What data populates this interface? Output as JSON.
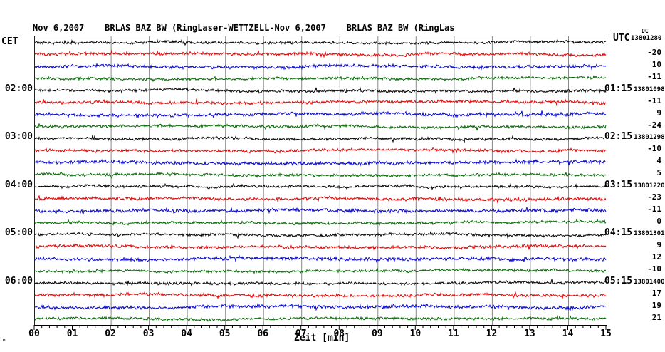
{
  "title": "Nov 6,2007    BRLAS BAZ BW (RingLaser-WETTZELL-Nov 6,2007    BRLAS BAZ BW (RingLas",
  "left_axis_label": "CET",
  "right_axis_label": "UTC",
  "dc_column_label": "DC",
  "xlabel": "Zeit [min]",
  "corner_mark": "ₘ",
  "colors": {
    "black": "#000000",
    "red": "#e00000",
    "blue": "#0000cc",
    "green": "#006600",
    "grid": "#888888",
    "axis": "#000000"
  },
  "x_ticks": [
    "00",
    "01",
    "02",
    "03",
    "04",
    "05",
    "06",
    "07",
    "08",
    "09",
    "10",
    "11",
    "12",
    "13",
    "14",
    "15"
  ],
  "chart_data": {
    "type": "line",
    "subtype": "helicorder-seismogram",
    "title": "Nov 6,2007    BRLAS BAZ BW (RingLaser-WETTZELL-Nov 6,2007    BRLAS BAZ BW (RingLas",
    "xlabel": "Zeit [min]",
    "x_range_minutes": [
      0,
      15
    ],
    "minutes_per_line": 15,
    "grid": true,
    "legend_position": "none",
    "left_time_zone": "CET",
    "right_time_zone": "UTC",
    "traces": [
      {
        "color": "black",
        "cet": "",
        "utc": "",
        "counter": "13801280",
        "dc_flag": true,
        "amp": 2.2
      },
      {
        "color": "red",
        "value": "-20",
        "amp": 2.5
      },
      {
        "color": "blue",
        "value": "10",
        "amp": 2.8
      },
      {
        "color": "green",
        "value": "-11",
        "amp": 2.2
      },
      {
        "color": "black",
        "cet": "02:00",
        "utc": "01:15",
        "counter": "13801098",
        "amp": 2.2
      },
      {
        "color": "red",
        "value": "-11",
        "amp": 2.5
      },
      {
        "color": "blue",
        "value": "9",
        "amp": 2.8
      },
      {
        "color": "green",
        "value": "-24",
        "amp": 2.2
      },
      {
        "color": "black",
        "cet": "03:00",
        "utc": "02:15",
        "counter": "13801298",
        "amp": 2.2
      },
      {
        "color": "red",
        "value": "-10",
        "amp": 2.5
      },
      {
        "color": "blue",
        "value": "4",
        "amp": 2.8
      },
      {
        "color": "green",
        "value": "5",
        "amp": 2.2
      },
      {
        "color": "black",
        "cet": "04:00",
        "utc": "03:15",
        "counter": "13801220",
        "amp": 2.2
      },
      {
        "color": "red",
        "value": "-23",
        "amp": 2.5
      },
      {
        "color": "blue",
        "value": "-11",
        "amp": 2.8
      },
      {
        "color": "green",
        "value": "0",
        "amp": 2.2
      },
      {
        "color": "black",
        "cet": "05:00",
        "utc": "04:15",
        "counter": "13801301",
        "amp": 2.2
      },
      {
        "color": "red",
        "value": "9",
        "amp": 2.5
      },
      {
        "color": "blue",
        "value": "12",
        "amp": 2.8
      },
      {
        "color": "green",
        "value": "-10",
        "amp": 2.2
      },
      {
        "color": "black",
        "cet": "06:00",
        "utc": "05:15",
        "counter": "13801400",
        "amp": 2.2
      },
      {
        "color": "red",
        "value": "17",
        "amp": 2.5
      },
      {
        "color": "blue",
        "value": "19",
        "amp": 2.8
      },
      {
        "color": "green",
        "value": "21",
        "amp": 2.2
      }
    ]
  }
}
